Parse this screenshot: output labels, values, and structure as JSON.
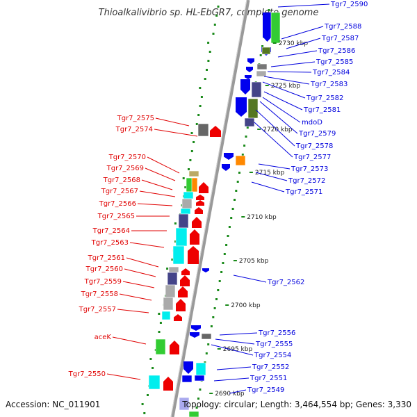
{
  "title": "Thioalkalivibrio sp. HL-EbGR7, complete genome",
  "accession": "Accession: NC_011901",
  "topology": "Topology: circular; Length: 3,464,554 bp; Genes: 3,330",
  "colors": {
    "left_label": "#e00000",
    "right_label": "#0000dd",
    "backbone": "#9a9a9a",
    "gc_dots": "#1a8a1a"
  },
  "kbp_ticks": [
    "2730 kbp",
    "2725 kbp",
    "2720 kbp",
    "2715 kbp",
    "2710 kbp",
    "2705 kbp",
    "2700 kbp",
    "2695 kbp",
    "2690 kbp"
  ],
  "left_labels": [
    "Tgr7_2575",
    "Tgr7_2574",
    "Tgr7_2570",
    "Tgr7_2569",
    "Tgr7_2568",
    "Tgr7_2567",
    "Tgr7_2566",
    "Tgr7_2565",
    "Tgr7_2564",
    "Tgr7_2563",
    "Tgr7_2561",
    "Tgr7_2560",
    "Tgr7_2559",
    "Tgr7_2558",
    "Tgr7_2557",
    "aceK",
    "Tgr7_2550"
  ],
  "right_labels": [
    "Tgr7_2590",
    "Tgr7_2588",
    "Tgr7_2587",
    "Tgr7_2586",
    "Tgr7_2585",
    "Tgr7_2584",
    "Tgr7_2583",
    "Tgr7_2582",
    "Tgr7_2581",
    "mdoD",
    "Tgr7_2579",
    "Tgr7_2578",
    "Tgr7_2577",
    "Tgr7_2573",
    "Tgr7_2572",
    "Tgr7_2571",
    "Tgr7_2562",
    "Tgr7_2556",
    "Tgr7_2555",
    "Tgr7_2554",
    "Tgr7_2552",
    "Tgr7_2551",
    "Tgr7_2549"
  ]
}
